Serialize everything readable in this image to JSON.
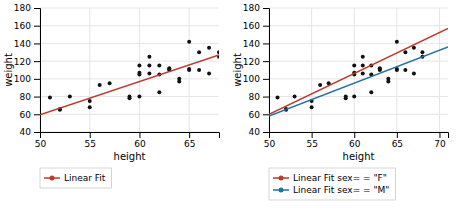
{
  "chart_data": [
    {
      "type": "scatter",
      "xlabel": "height",
      "ylabel": "weight",
      "xlim": [
        50,
        68
      ],
      "ylim": [
        40,
        180
      ],
      "xticks": [
        50,
        55,
        60,
        65
      ],
      "yticks": [
        40,
        60,
        80,
        100,
        120,
        140,
        160,
        180
      ],
      "grid": true,
      "legend": "bottom",
      "series": [
        {
          "type": "scatter",
          "color": "#111111",
          "x": [
            51,
            52,
            52,
            53,
            55,
            55,
            56,
            57,
            59,
            59,
            60,
            60,
            60,
            60,
            61,
            61,
            61,
            62,
            62,
            62,
            63,
            63,
            63,
            64,
            64,
            65,
            65,
            65,
            66,
            66,
            67,
            67,
            68,
            68
          ],
          "values": [
            79,
            65,
            66,
            80,
            75,
            68,
            93,
            95,
            78,
            80,
            115,
            105,
            107,
            80,
            125,
            115,
            106,
            105,
            115,
            85,
            112,
            110,
            111,
            100,
            97,
            110,
            142,
            111,
            130,
            110,
            106,
            135,
            130,
            125
          ]
        },
        {
          "type": "line",
          "name": "Linear Fit",
          "color": "#c0392b",
          "x": [
            50,
            68
          ],
          "values": [
            59.5,
            127
          ]
        }
      ]
    },
    {
      "type": "scatter",
      "xlabel": "height",
      "ylabel": "weight",
      "xlim": [
        50,
        71
      ],
      "ylim": [
        40,
        180
      ],
      "xticks": [
        50,
        55,
        60,
        65,
        70
      ],
      "yticks": [
        40,
        60,
        80,
        100,
        120,
        140,
        160,
        180
      ],
      "grid": true,
      "legend": "bottom",
      "series": [
        {
          "type": "scatter",
          "color": "#111111",
          "x": [
            51,
            52,
            52,
            53,
            55,
            55,
            56,
            57,
            59,
            59,
            60,
            60,
            60,
            60,
            61,
            61,
            61,
            62,
            62,
            62,
            63,
            63,
            63,
            64,
            64,
            65,
            65,
            65,
            66,
            66,
            67,
            67,
            68,
            68
          ],
          "values": [
            79,
            65,
            66,
            80,
            75,
            68,
            93,
            95,
            78,
            80,
            115,
            105,
            107,
            80,
            125,
            115,
            106,
            105,
            115,
            85,
            112,
            110,
            111,
            100,
            97,
            110,
            142,
            111,
            130,
            110,
            106,
            135,
            130,
            125
          ]
        },
        {
          "type": "line",
          "name": "Linear Fit sex= = \"F\"",
          "color": "#c0392b",
          "x": [
            50,
            71
          ],
          "values": [
            60,
            157
          ]
        },
        {
          "type": "line",
          "name": "Linear Fit sex= = \"M\"",
          "color": "#2471a3",
          "x": [
            50,
            71
          ],
          "values": [
            58,
            136
          ]
        }
      ]
    }
  ]
}
